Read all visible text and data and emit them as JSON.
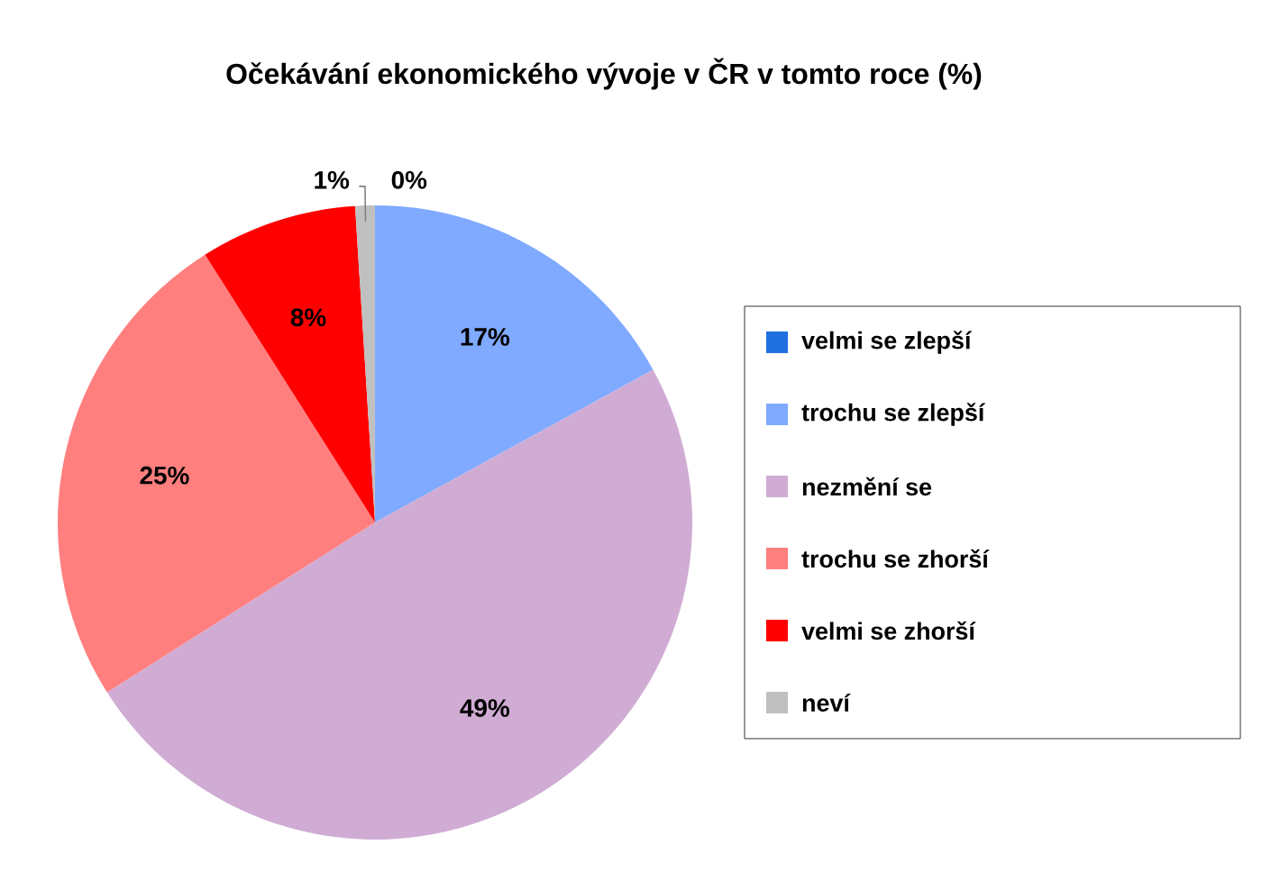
{
  "chart_data": {
    "type": "pie",
    "title": "Očekávání ekonomického vývoje v ČR v tomto roce (%)",
    "categories": [
      "velmi se zlepší",
      "trochu se zlepší",
      "nezmění se",
      "trochu se zhorší",
      "velmi se zhorší",
      "neví"
    ],
    "values": [
      0,
      17,
      49,
      25,
      8,
      1
    ],
    "value_labels": [
      "0%",
      "17%",
      "49%",
      "25%",
      "8%",
      "1%"
    ],
    "colors": [
      "#1f6fe0",
      "#80aaff",
      "#d0acd4",
      "#ff7f7f",
      "#ff0000",
      "#c0c0c0"
    ],
    "legend": "right"
  }
}
